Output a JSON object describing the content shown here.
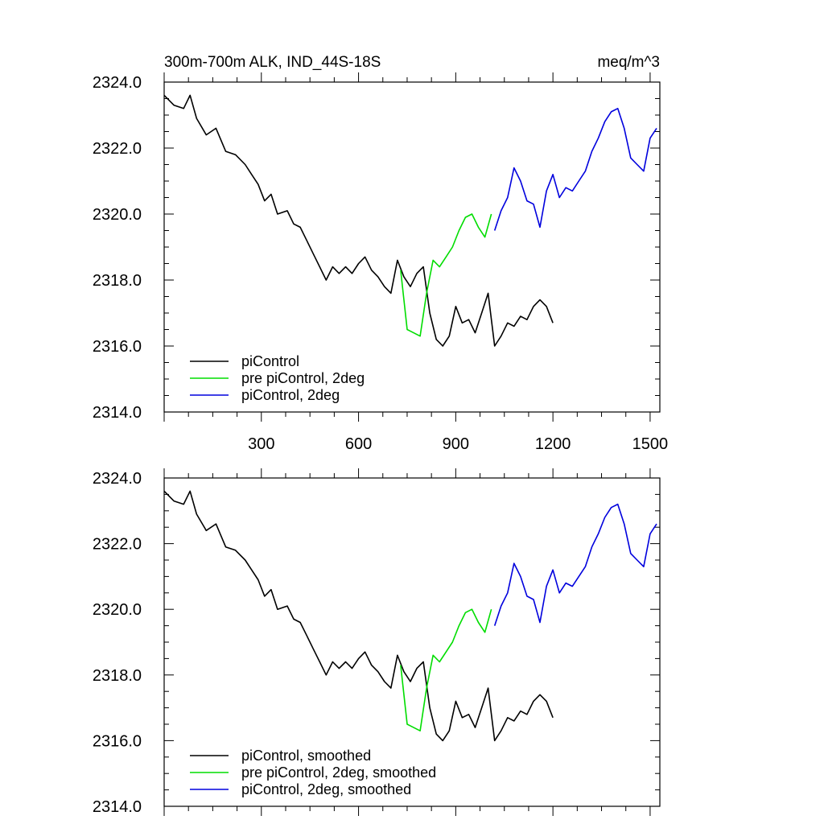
{
  "colors": {
    "piControl": "#000000",
    "pre_piControl_2deg": "#00dd00",
    "piControl_2deg": "#0000dd"
  },
  "chart_data": [
    {
      "type": "line",
      "title_left": "300m-700m ALK, IND_44S-18S",
      "title_right": "meq/m^3",
      "xlim": [
        0,
        1530
      ],
      "ylim": [
        2314.0,
        2324.0
      ],
      "x_ticks": [
        300,
        600,
        900,
        1200,
        1500
      ],
      "x_tick_labels": [
        "300",
        "600",
        "900",
        "1200",
        "1500"
      ],
      "y_ticks": [
        2314.0,
        2316.0,
        2318.0,
        2320.0,
        2322.0,
        2324.0
      ],
      "y_tick_labels": [
        "2314.0",
        "2316.0",
        "2318.0",
        "2320.0",
        "2322.0",
        "2324.0"
      ],
      "legend_position": "bottom-left",
      "series": [
        {
          "name": "piControl",
          "color_key": "piControl",
          "points": [
            [
              0,
              2323.6
            ],
            [
              30,
              2323.3
            ],
            [
              60,
              2323.2
            ],
            [
              80,
              2323.6
            ],
            [
              100,
              2322.9
            ],
            [
              130,
              2322.4
            ],
            [
              160,
              2322.6
            ],
            [
              190,
              2321.9
            ],
            [
              220,
              2321.8
            ],
            [
              250,
              2321.5
            ],
            [
              270,
              2321.2
            ],
            [
              290,
              2320.9
            ],
            [
              310,
              2320.4
            ],
            [
              330,
              2320.6
            ],
            [
              350,
              2320.0
            ],
            [
              380,
              2320.1
            ],
            [
              400,
              2319.7
            ],
            [
              420,
              2319.6
            ],
            [
              440,
              2319.2
            ],
            [
              460,
              2318.8
            ],
            [
              480,
              2318.4
            ],
            [
              500,
              2318.0
            ],
            [
              520,
              2318.4
            ],
            [
              540,
              2318.2
            ],
            [
              560,
              2318.4
            ],
            [
              580,
              2318.2
            ],
            [
              600,
              2318.5
            ],
            [
              620,
              2318.7
            ],
            [
              640,
              2318.3
            ],
            [
              660,
              2318.1
            ],
            [
              680,
              2317.8
            ],
            [
              700,
              2317.6
            ],
            [
              720,
              2318.6
            ],
            [
              740,
              2318.1
            ],
            [
              760,
              2317.8
            ],
            [
              780,
              2318.2
            ],
            [
              800,
              2318.4
            ],
            [
              820,
              2317.0
            ],
            [
              840,
              2316.2
            ],
            [
              860,
              2316.0
            ],
            [
              880,
              2316.3
            ],
            [
              900,
              2317.2
            ],
            [
              920,
              2316.7
            ],
            [
              940,
              2316.8
            ],
            [
              960,
              2316.4
            ],
            [
              980,
              2317.0
            ],
            [
              1000,
              2317.6
            ],
            [
              1020,
              2316.0
            ],
            [
              1040,
              2316.3
            ],
            [
              1060,
              2316.7
            ],
            [
              1080,
              2316.6
            ],
            [
              1100,
              2316.9
            ],
            [
              1120,
              2316.8
            ],
            [
              1140,
              2317.2
            ],
            [
              1160,
              2317.4
            ],
            [
              1180,
              2317.2
            ],
            [
              1200,
              2316.7
            ]
          ]
        },
        {
          "name": "pre piControl, 2deg",
          "color_key": "pre_piControl_2deg",
          "points": [
            [
              730,
              2318.3
            ],
            [
              750,
              2316.5
            ],
            [
              770,
              2316.4
            ],
            [
              790,
              2316.3
            ],
            [
              810,
              2317.6
            ],
            [
              830,
              2318.6
            ],
            [
              850,
              2318.4
            ],
            [
              870,
              2318.7
            ],
            [
              890,
              2319.0
            ],
            [
              910,
              2319.5
            ],
            [
              930,
              2319.9
            ],
            [
              950,
              2320.0
            ],
            [
              970,
              2319.6
            ],
            [
              990,
              2319.3
            ],
            [
              1010,
              2320.0
            ]
          ]
        },
        {
          "name": "piControl, 2deg",
          "color_key": "piControl_2deg",
          "points": [
            [
              1020,
              2319.5
            ],
            [
              1040,
              2320.1
            ],
            [
              1060,
              2320.5
            ],
            [
              1080,
              2321.4
            ],
            [
              1100,
              2321.0
            ],
            [
              1120,
              2320.4
            ],
            [
              1140,
              2320.3
            ],
            [
              1160,
              2319.6
            ],
            [
              1180,
              2320.7
            ],
            [
              1200,
              2321.2
            ],
            [
              1220,
              2320.5
            ],
            [
              1240,
              2320.8
            ],
            [
              1260,
              2320.7
            ],
            [
              1280,
              2321.0
            ],
            [
              1300,
              2321.3
            ],
            [
              1320,
              2321.9
            ],
            [
              1340,
              2322.3
            ],
            [
              1360,
              2322.8
            ],
            [
              1380,
              2323.1
            ],
            [
              1400,
              2323.2
            ],
            [
              1420,
              2322.6
            ],
            [
              1440,
              2321.7
            ],
            [
              1460,
              2321.5
            ],
            [
              1480,
              2321.3
            ],
            [
              1500,
              2322.3
            ],
            [
              1520,
              2322.6
            ]
          ]
        }
      ]
    },
    {
      "type": "line",
      "xlim": [
        0,
        1530
      ],
      "ylim": [
        2314.0,
        2324.0
      ],
      "x_ticks": [
        300,
        600,
        900,
        1200,
        1500
      ],
      "y_ticks": [
        2314.0,
        2316.0,
        2318.0,
        2320.0,
        2322.0,
        2324.0
      ],
      "y_tick_labels": [
        "2314.0",
        "2316.0",
        "2318.0",
        "2320.0",
        "2322.0",
        "2324.0"
      ],
      "legend_position": "bottom-left",
      "series": [
        {
          "name": "piControl, smoothed",
          "color_key": "piControl",
          "points": [
            [
              0,
              2323.6
            ],
            [
              30,
              2323.3
            ],
            [
              60,
              2323.2
            ],
            [
              80,
              2323.6
            ],
            [
              100,
              2322.9
            ],
            [
              130,
              2322.4
            ],
            [
              160,
              2322.6
            ],
            [
              190,
              2321.9
            ],
            [
              220,
              2321.8
            ],
            [
              250,
              2321.5
            ],
            [
              270,
              2321.2
            ],
            [
              290,
              2320.9
            ],
            [
              310,
              2320.4
            ],
            [
              330,
              2320.6
            ],
            [
              350,
              2320.0
            ],
            [
              380,
              2320.1
            ],
            [
              400,
              2319.7
            ],
            [
              420,
              2319.6
            ],
            [
              440,
              2319.2
            ],
            [
              460,
              2318.8
            ],
            [
              480,
              2318.4
            ],
            [
              500,
              2318.0
            ],
            [
              520,
              2318.4
            ],
            [
              540,
              2318.2
            ],
            [
              560,
              2318.4
            ],
            [
              580,
              2318.2
            ],
            [
              600,
              2318.5
            ],
            [
              620,
              2318.7
            ],
            [
              640,
              2318.3
            ],
            [
              660,
              2318.1
            ],
            [
              680,
              2317.8
            ],
            [
              700,
              2317.6
            ],
            [
              720,
              2318.6
            ],
            [
              740,
              2318.1
            ],
            [
              760,
              2317.8
            ],
            [
              780,
              2318.2
            ],
            [
              800,
              2318.4
            ],
            [
              820,
              2317.0
            ],
            [
              840,
              2316.2
            ],
            [
              860,
              2316.0
            ],
            [
              880,
              2316.3
            ],
            [
              900,
              2317.2
            ],
            [
              920,
              2316.7
            ],
            [
              940,
              2316.8
            ],
            [
              960,
              2316.4
            ],
            [
              980,
              2317.0
            ],
            [
              1000,
              2317.6
            ],
            [
              1020,
              2316.0
            ],
            [
              1040,
              2316.3
            ],
            [
              1060,
              2316.7
            ],
            [
              1080,
              2316.6
            ],
            [
              1100,
              2316.9
            ],
            [
              1120,
              2316.8
            ],
            [
              1140,
              2317.2
            ],
            [
              1160,
              2317.4
            ],
            [
              1180,
              2317.2
            ],
            [
              1200,
              2316.7
            ]
          ]
        },
        {
          "name": "pre piControl, 2deg, smoothed",
          "color_key": "pre_piControl_2deg",
          "points": [
            [
              730,
              2318.3
            ],
            [
              750,
              2316.5
            ],
            [
              770,
              2316.4
            ],
            [
              790,
              2316.3
            ],
            [
              810,
              2317.6
            ],
            [
              830,
              2318.6
            ],
            [
              850,
              2318.4
            ],
            [
              870,
              2318.7
            ],
            [
              890,
              2319.0
            ],
            [
              910,
              2319.5
            ],
            [
              930,
              2319.9
            ],
            [
              950,
              2320.0
            ],
            [
              970,
              2319.6
            ],
            [
              990,
              2319.3
            ],
            [
              1010,
              2320.0
            ]
          ]
        },
        {
          "name": "piControl, 2deg, smoothed",
          "color_key": "piControl_2deg",
          "points": [
            [
              1020,
              2319.5
            ],
            [
              1040,
              2320.1
            ],
            [
              1060,
              2320.5
            ],
            [
              1080,
              2321.4
            ],
            [
              1100,
              2321.0
            ],
            [
              1120,
              2320.4
            ],
            [
              1140,
              2320.3
            ],
            [
              1160,
              2319.6
            ],
            [
              1180,
              2320.7
            ],
            [
              1200,
              2321.2
            ],
            [
              1220,
              2320.5
            ],
            [
              1240,
              2320.8
            ],
            [
              1260,
              2320.7
            ],
            [
              1280,
              2321.0
            ],
            [
              1300,
              2321.3
            ],
            [
              1320,
              2321.9
            ],
            [
              1340,
              2322.3
            ],
            [
              1360,
              2322.8
            ],
            [
              1380,
              2323.1
            ],
            [
              1400,
              2323.2
            ],
            [
              1420,
              2322.6
            ],
            [
              1440,
              2321.7
            ],
            [
              1460,
              2321.5
            ],
            [
              1480,
              2321.3
            ],
            [
              1500,
              2322.3
            ],
            [
              1520,
              2322.6
            ]
          ]
        }
      ]
    }
  ]
}
